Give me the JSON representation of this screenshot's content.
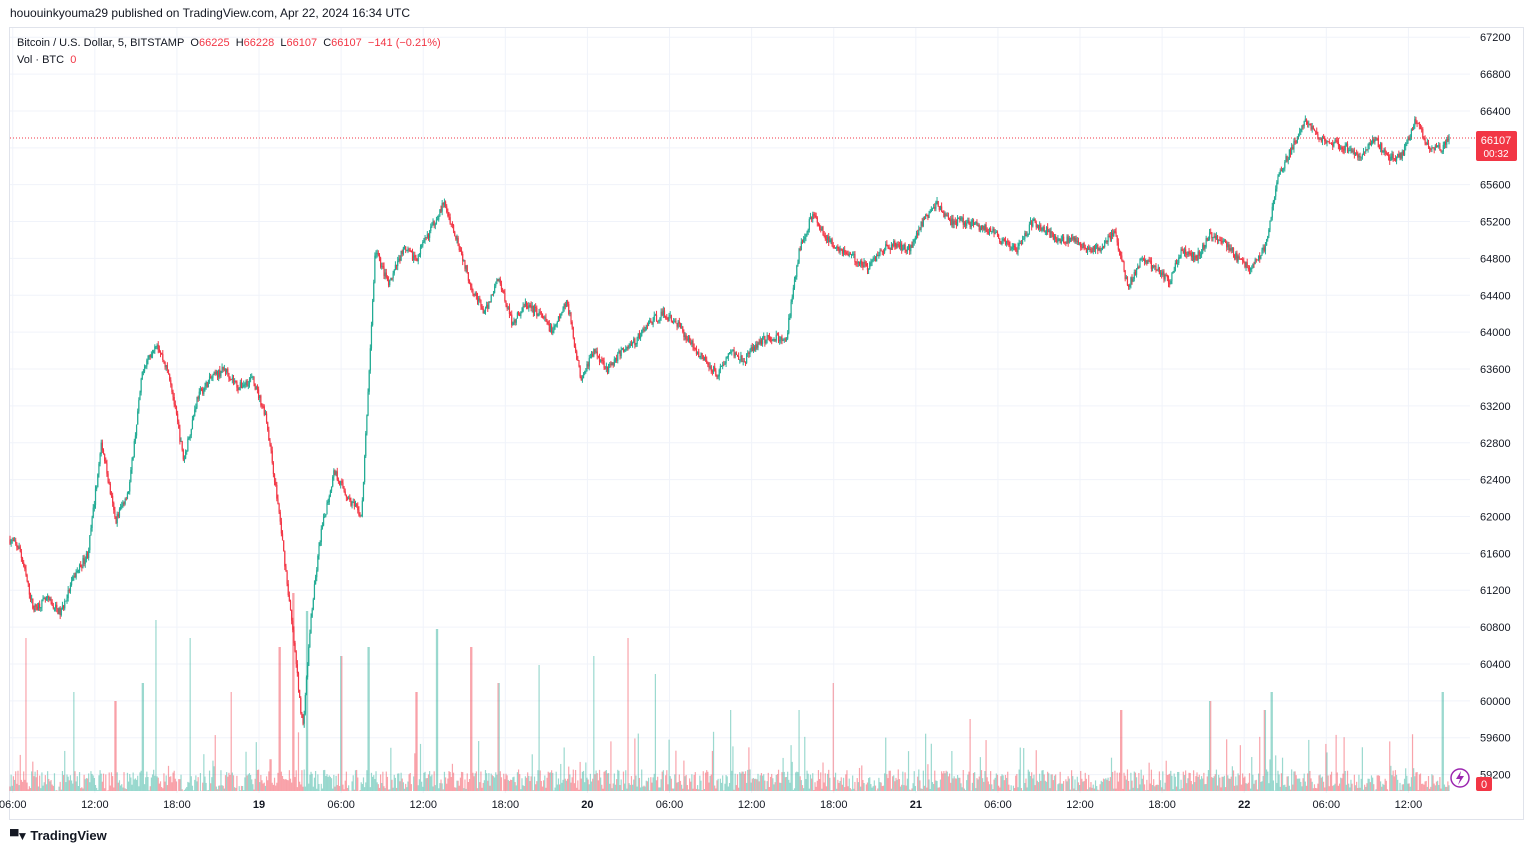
{
  "header": {
    "caption": "hououinkyouma29 published on TradingView.com, Apr 22, 2024 16:34 UTC"
  },
  "legend": {
    "symbol": "Bitcoin / U.S. Dollar, 5, BITSTAMP",
    "o_label": "O",
    "o_value": "66225",
    "h_label": "H",
    "h_value": "66228",
    "l_label": "L",
    "l_value": "66107",
    "c_label": "C",
    "c_value": "66107",
    "change": "−141 (−0.21%)",
    "vol_label": "Vol · BTC",
    "vol_value": "0"
  },
  "price_tag": {
    "price": "66107",
    "countdown": "00:32",
    "vol_tag": "0"
  },
  "footer": {
    "logo_text": "TradingView"
  },
  "colors": {
    "up": "#22ab94",
    "down": "#f23645",
    "grid": "#f0f3fa",
    "text": "#131722"
  },
  "chart_data": {
    "type": "candlestick",
    "symbol": "Bitcoin / U.S. Dollar",
    "interval": "5",
    "exchange": "BITSTAMP",
    "last_price": 66107,
    "y_ticks": [
      59200,
      59600,
      60000,
      60400,
      60800,
      61200,
      61600,
      62000,
      62400,
      62800,
      63200,
      63600,
      64000,
      64400,
      64800,
      65200,
      65600,
      66000,
      66400,
      66800,
      67200
    ],
    "ylim": [
      59000,
      67300
    ],
    "x_ticks": [
      {
        "label": "06:00",
        "t": 0
      },
      {
        "label": "12:00",
        "t": 6
      },
      {
        "label": "18:00",
        "t": 12
      },
      {
        "label": "19",
        "t": 18
      },
      {
        "label": "06:00",
        "t": 24
      },
      {
        "label": "12:00",
        "t": 30
      },
      {
        "label": "18:00",
        "t": 36
      },
      {
        "label": "20",
        "t": 42
      },
      {
        "label": "06:00",
        "t": 48
      },
      {
        "label": "12:00",
        "t": 54
      },
      {
        "label": "18:00",
        "t": 60
      },
      {
        "label": "21",
        "t": 66
      },
      {
        "label": "06:00",
        "t": 72
      },
      {
        "label": "12:00",
        "t": 78
      },
      {
        "label": "18:00",
        "t": 84
      },
      {
        "label": "22",
        "t": 90
      },
      {
        "label": "06:00",
        "t": 96
      },
      {
        "label": "12:00",
        "t": 102
      }
    ],
    "xlim_hours": [
      -0.2,
      106.5
    ],
    "price_path": [
      [
        -0.2,
        61750
      ],
      [
        0.5,
        61650
      ],
      [
        1.5,
        61000
      ],
      [
        2.5,
        61100
      ],
      [
        3.5,
        60950
      ],
      [
        4.5,
        61350
      ],
      [
        5.5,
        61600
      ],
      [
        6.5,
        62800
      ],
      [
        7.5,
        61950
      ],
      [
        8.5,
        62300
      ],
      [
        9.5,
        63600
      ],
      [
        10.5,
        63900
      ],
      [
        11.5,
        63500
      ],
      [
        12.5,
        62600
      ],
      [
        13.5,
        63300
      ],
      [
        14.5,
        63500
      ],
      [
        15.5,
        63600
      ],
      [
        16.5,
        63400
      ],
      [
        17.5,
        63500
      ],
      [
        18.5,
        63100
      ],
      [
        19.5,
        62000
      ],
      [
        20.5,
        60700
      ],
      [
        21.2,
        59700
      ],
      [
        21.8,
        60900
      ],
      [
        22.5,
        61800
      ],
      [
        23.5,
        62500
      ],
      [
        24.5,
        62200
      ],
      [
        25.5,
        62000
      ],
      [
        26.5,
        64900
      ],
      [
        27.5,
        64500
      ],
      [
        28.5,
        64900
      ],
      [
        29.5,
        64800
      ],
      [
        30.5,
        65100
      ],
      [
        31.5,
        65400
      ],
      [
        32.5,
        65000
      ],
      [
        33.5,
        64500
      ],
      [
        34.5,
        64200
      ],
      [
        35.5,
        64600
      ],
      [
        36.5,
        64100
      ],
      [
        37.5,
        64300
      ],
      [
        38.5,
        64200
      ],
      [
        39.5,
        64000
      ],
      [
        40.5,
        64350
      ],
      [
        41.5,
        63500
      ],
      [
        42.5,
        63800
      ],
      [
        43.5,
        63600
      ],
      [
        44.5,
        63800
      ],
      [
        45.5,
        63900
      ],
      [
        46.5,
        64100
      ],
      [
        47.5,
        64200
      ],
      [
        48.5,
        64100
      ],
      [
        49.5,
        63900
      ],
      [
        50.5,
        63700
      ],
      [
        51.5,
        63550
      ],
      [
        52.5,
        63800
      ],
      [
        53.5,
        63700
      ],
      [
        54.5,
        63900
      ],
      [
        55.5,
        63950
      ],
      [
        56.5,
        63900
      ],
      [
        57.5,
        64900
      ],
      [
        58.5,
        65300
      ],
      [
        59.5,
        65000
      ],
      [
        60.5,
        64900
      ],
      [
        61.5,
        64800
      ],
      [
        62.5,
        64700
      ],
      [
        63.5,
        64900
      ],
      [
        64.5,
        64950
      ],
      [
        65.5,
        64900
      ],
      [
        66.5,
        65200
      ],
      [
        67.5,
        65400
      ],
      [
        68.5,
        65200
      ],
      [
        69.5,
        65200
      ],
      [
        70.5,
        65150
      ],
      [
        71.5,
        65100
      ],
      [
        72.5,
        64950
      ],
      [
        73.5,
        64900
      ],
      [
        74.5,
        65200
      ],
      [
        75.5,
        65100
      ],
      [
        76.5,
        65000
      ],
      [
        77.5,
        65000
      ],
      [
        78.5,
        64900
      ],
      [
        79.5,
        64900
      ],
      [
        80.5,
        65100
      ],
      [
        81.5,
        64500
      ],
      [
        82.5,
        64800
      ],
      [
        83.5,
        64700
      ],
      [
        84.5,
        64550
      ],
      [
        85.5,
        64900
      ],
      [
        86.5,
        64800
      ],
      [
        87.5,
        65050
      ],
      [
        88.5,
        65000
      ],
      [
        89.5,
        64800
      ],
      [
        90.5,
        64700
      ],
      [
        91.5,
        64900
      ],
      [
        92.5,
        65700
      ],
      [
        93.5,
        66000
      ],
      [
        94.5,
        66300
      ],
      [
        95.5,
        66100
      ],
      [
        96.5,
        66050
      ],
      [
        97.5,
        66000
      ],
      [
        98.5,
        65900
      ],
      [
        99.5,
        66100
      ],
      [
        100.5,
        65900
      ],
      [
        101.5,
        65900
      ],
      [
        102.5,
        66300
      ],
      [
        103.5,
        66000
      ],
      [
        104.5,
        66000
      ],
      [
        105.0,
        66107
      ]
    ],
    "volume_spikes": [
      {
        "t": 1.0,
        "v": 0.85
      },
      {
        "t": 4.5,
        "v": 0.55
      },
      {
        "t": 7.5,
        "v": 0.5
      },
      {
        "t": 9.5,
        "v": 0.6
      },
      {
        "t": 10.5,
        "v": 0.95
      },
      {
        "t": 13.0,
        "v": 0.85
      },
      {
        "t": 16.0,
        "v": 0.55
      },
      {
        "t": 19.5,
        "v": 0.8
      },
      {
        "t": 20.5,
        "v": 1.1
      },
      {
        "t": 21.5,
        "v": 1.0
      },
      {
        "t": 24.0,
        "v": 0.75
      },
      {
        "t": 26.0,
        "v": 0.8
      },
      {
        "t": 29.5,
        "v": 0.55
      },
      {
        "t": 31.0,
        "v": 0.9
      },
      {
        "t": 33.5,
        "v": 0.8
      },
      {
        "t": 35.5,
        "v": 0.6
      },
      {
        "t": 38.5,
        "v": 0.7
      },
      {
        "t": 42.5,
        "v": 0.75
      },
      {
        "t": 45.0,
        "v": 0.85
      },
      {
        "t": 47.0,
        "v": 0.65
      },
      {
        "t": 52.5,
        "v": 0.45
      },
      {
        "t": 57.5,
        "v": 0.45
      },
      {
        "t": 60.0,
        "v": 0.6
      },
      {
        "t": 70.0,
        "v": 0.4
      },
      {
        "t": 81.0,
        "v": 0.45
      },
      {
        "t": 87.5,
        "v": 0.5
      },
      {
        "t": 91.5,
        "v": 0.45
      },
      {
        "t": 92.0,
        "v": 0.55
      },
      {
        "t": 104.5,
        "v": 0.55
      }
    ]
  }
}
